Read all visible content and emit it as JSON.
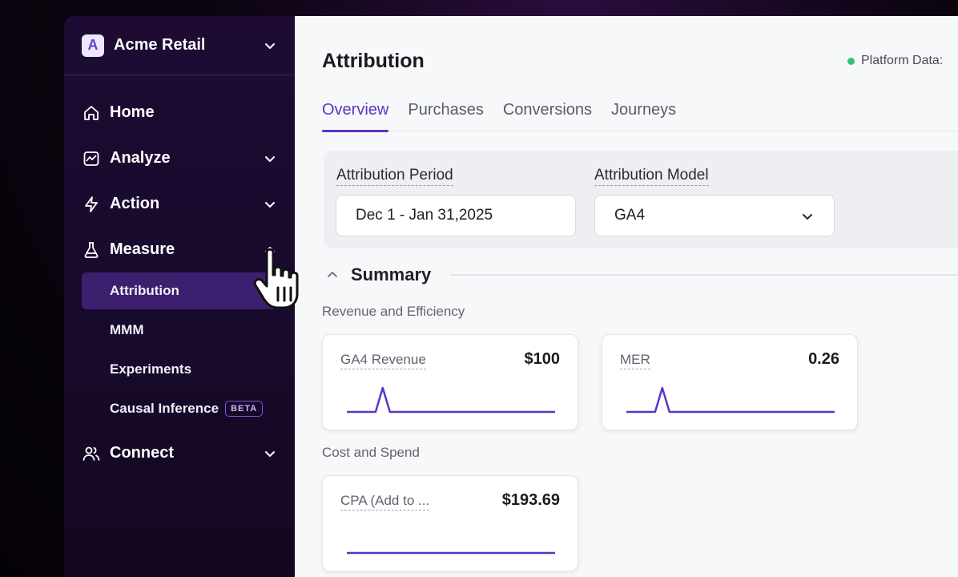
{
  "org": {
    "logo_letter": "A",
    "name": "Acme Retail"
  },
  "nav": {
    "home": "Home",
    "analyze": "Analyze",
    "action": "Action",
    "measure": "Measure",
    "measure_items": [
      "Attribution",
      "MMM",
      "Experiments",
      "Causal Inference"
    ],
    "beta_badge": "BETA",
    "connect": "Connect"
  },
  "page": {
    "title": "Attribution",
    "platform_status": "Platform Data:",
    "tabs": [
      "Overview",
      "Purchases",
      "Conversions",
      "Journeys"
    ],
    "active_tab": "Overview"
  },
  "filters": {
    "period_label": "Attribution Period",
    "period_value": "Dec 1 - Jan 31,2025",
    "model_label": "Attribution Model",
    "model_value": "GA4"
  },
  "summary": {
    "heading": "Summary",
    "revenue_section": "Revenue and Efficiency",
    "cost_section": "Cost and Spend",
    "cards": [
      {
        "title": "GA4 Revenue",
        "value": "$100",
        "spark": [
          0,
          0,
          0,
          0,
          0,
          1,
          0,
          0,
          0,
          0,
          0,
          0,
          0,
          0,
          0,
          0,
          0,
          0,
          0,
          0,
          0,
          0,
          0,
          0,
          0,
          0,
          0,
          0,
          0,
          0
        ]
      },
      {
        "title": "MER",
        "value": "0.26",
        "spark": [
          0,
          0,
          0,
          0,
          0,
          1,
          0,
          0,
          0,
          0,
          0,
          0,
          0,
          0,
          0,
          0,
          0,
          0,
          0,
          0,
          0,
          0,
          0,
          0,
          0,
          0,
          0,
          0,
          0,
          0
        ]
      },
      {
        "title": "CPA (Add to ...",
        "value": "$193.69",
        "spark": [
          0,
          0,
          0,
          0,
          0,
          0,
          0,
          0,
          0,
          0,
          0,
          0,
          0,
          0,
          0,
          0,
          0,
          0,
          0,
          0,
          0,
          0,
          0,
          0,
          0,
          0,
          0,
          0,
          0,
          0
        ]
      }
    ]
  },
  "colors": {
    "accent": "#5a35c4",
    "sidebar_bg": "#1d0b33",
    "active_item": "#3c1f6e",
    "status_green": "#2fc774",
    "spark": "#5b34c8"
  }
}
